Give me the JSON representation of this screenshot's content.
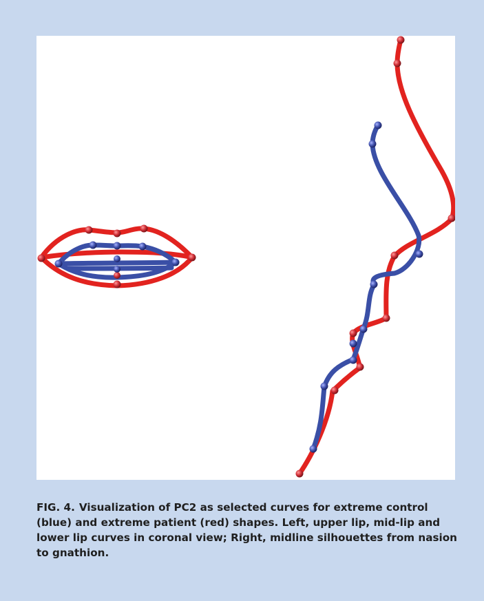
{
  "figure": {
    "label": "FIG. 4.",
    "caption": "Visualization of PC2 as selected curves for extreme control (blue) and extreme patient (red) shapes. Left, upper lip, mid-lip and lower lip curves in coronal view; Right, midline silhouettes from nasion to gnathion."
  },
  "colors": {
    "background": "#c8d8ee",
    "panel": "#ffffff",
    "control": "#3a4fa6",
    "patient": "#e2231f",
    "control_landmark": "#4252a8",
    "patient_landmark": "#c8323a"
  },
  "legend": {
    "control": "blue",
    "patient": "red"
  }
}
